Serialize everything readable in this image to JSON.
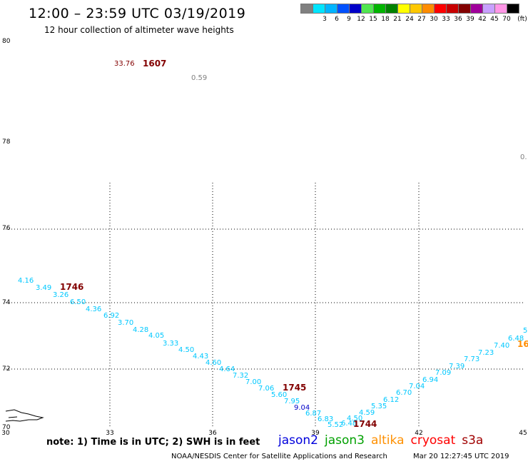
{
  "header": {
    "title": "12:00 – 23:59 UTC 03/19/2019",
    "subtitle": "12 hour collection of altimeter wave heights"
  },
  "color_scale": {
    "unit": "(ft)",
    "bins": [
      {
        "label": "",
        "color": "#808080"
      },
      {
        "label": "3",
        "color": "#00e5ff"
      },
      {
        "label": "6",
        "color": "#00b4ff"
      },
      {
        "label": "9",
        "color": "#0050ff"
      },
      {
        "label": "12",
        "color": "#0000c8"
      },
      {
        "label": "15",
        "color": "#50e650"
      },
      {
        "label": "18",
        "color": "#00b400"
      },
      {
        "label": "21",
        "color": "#008200"
      },
      {
        "label": "24",
        "color": "#ffff00"
      },
      {
        "label": "27",
        "color": "#ffc800"
      },
      {
        "label": "30",
        "color": "#ff8c00"
      },
      {
        "label": "33",
        "color": "#ff0000"
      },
      {
        "label": "36",
        "color": "#c80000"
      },
      {
        "label": "39",
        "color": "#820000"
      },
      {
        "label": "42",
        "color": "#a0009b"
      },
      {
        "label": "45",
        "color": "#c8a0ff"
      },
      {
        "label": "70",
        "color": "#ff96e6"
      },
      {
        "label": "",
        "color": "#000000"
      }
    ]
  },
  "map": {
    "lat_labels": [
      "80",
      "78",
      "76",
      "74",
      "72",
      "70"
    ],
    "lon_labels": [
      "30",
      "33",
      "36",
      "39",
      "42",
      "45"
    ],
    "gridlines": "dotted"
  },
  "observations": [
    {
      "text": "33.76",
      "color": "#820000"
    },
    {
      "text": "1607",
      "color": "#820000",
      "bold": true
    },
    {
      "text": "0.59",
      "color": "#808080"
    },
    {
      "text": "0.",
      "color": "#808080"
    },
    {
      "text": "4.16",
      "color": "#00c8ff"
    },
    {
      "text": "3.49",
      "color": "#00c8ff"
    },
    {
      "text": "1746",
      "color": "#820000",
      "bold": true
    },
    {
      "text": "3.26",
      "color": "#00c8ff"
    },
    {
      "text": "6.50",
      "color": "#00c8ff"
    },
    {
      "text": "4.36",
      "color": "#00c8ff"
    },
    {
      "text": "6.92",
      "color": "#00c8ff"
    },
    {
      "text": "3.70",
      "color": "#00c8ff"
    },
    {
      "text": "4.28",
      "color": "#00c8ff"
    },
    {
      "text": "4.05",
      "color": "#00c8ff"
    },
    {
      "text": "3.33",
      "color": "#00c8ff"
    },
    {
      "text": "4.50",
      "color": "#00c8ff"
    },
    {
      "text": "4.43",
      "color": "#00c8ff"
    },
    {
      "text": "4.60",
      "color": "#00c8ff"
    },
    {
      "text": "4.64",
      "color": "#00c8ff"
    },
    {
      "text": "7.32",
      "color": "#00c8ff"
    },
    {
      "text": "7.00",
      "color": "#00c8ff"
    },
    {
      "text": "7.06",
      "color": "#00c8ff"
    },
    {
      "text": "1745",
      "color": "#820000",
      "bold": true
    },
    {
      "text": "5.60",
      "color": "#00c8ff"
    },
    {
      "text": "7.95",
      "color": "#00c8ff"
    },
    {
      "text": "9.04",
      "color": "#0000c8"
    },
    {
      "text": "6.87",
      "color": "#00c8ff"
    },
    {
      "text": "6.83",
      "color": "#00c8ff"
    },
    {
      "text": "5.52",
      "color": "#00c8ff"
    },
    {
      "text": "6.48",
      "color": "#00c8ff"
    },
    {
      "text": "4.50",
      "color": "#00c8ff"
    },
    {
      "text": "1744",
      "color": "#820000",
      "bold": true
    },
    {
      "text": "4.59",
      "color": "#00c8ff"
    },
    {
      "text": "5.35",
      "color": "#00c8ff"
    },
    {
      "text": "6.12",
      "color": "#00c8ff"
    },
    {
      "text": "6.70",
      "color": "#00c8ff"
    },
    {
      "text": "7.04",
      "color": "#00c8ff"
    },
    {
      "text": "6.94",
      "color": "#00c8ff"
    },
    {
      "text": "7.09",
      "color": "#00c8ff"
    },
    {
      "text": "7.39",
      "color": "#00c8ff"
    },
    {
      "text": "7.73",
      "color": "#00c8ff"
    },
    {
      "text": "7.23",
      "color": "#00c8ff"
    },
    {
      "text": "7.40",
      "color": "#00c8ff"
    },
    {
      "text": "6.48",
      "color": "#00c8ff"
    },
    {
      "text": "16",
      "color": "#ff8c00",
      "bold": true
    },
    {
      "text": "5",
      "color": "#00c8ff"
    }
  ],
  "footer": {
    "note": "note:  1) Time is in UTC;  2) SWH is in feet",
    "satellites": [
      {
        "name": "jason2",
        "color": "#0000dc"
      },
      {
        "name": "jason3",
        "color": "#00a000"
      },
      {
        "name": "altika",
        "color": "#ff9000"
      },
      {
        "name": "cryosat",
        "color": "#ff0000"
      },
      {
        "name": "s3a",
        "color": "#a00000"
      }
    ],
    "credit": "NOAA/NESDIS Center for Satellite Applications and Research",
    "timestamp": "Mar 20 12:27:45 UTC 2019"
  }
}
